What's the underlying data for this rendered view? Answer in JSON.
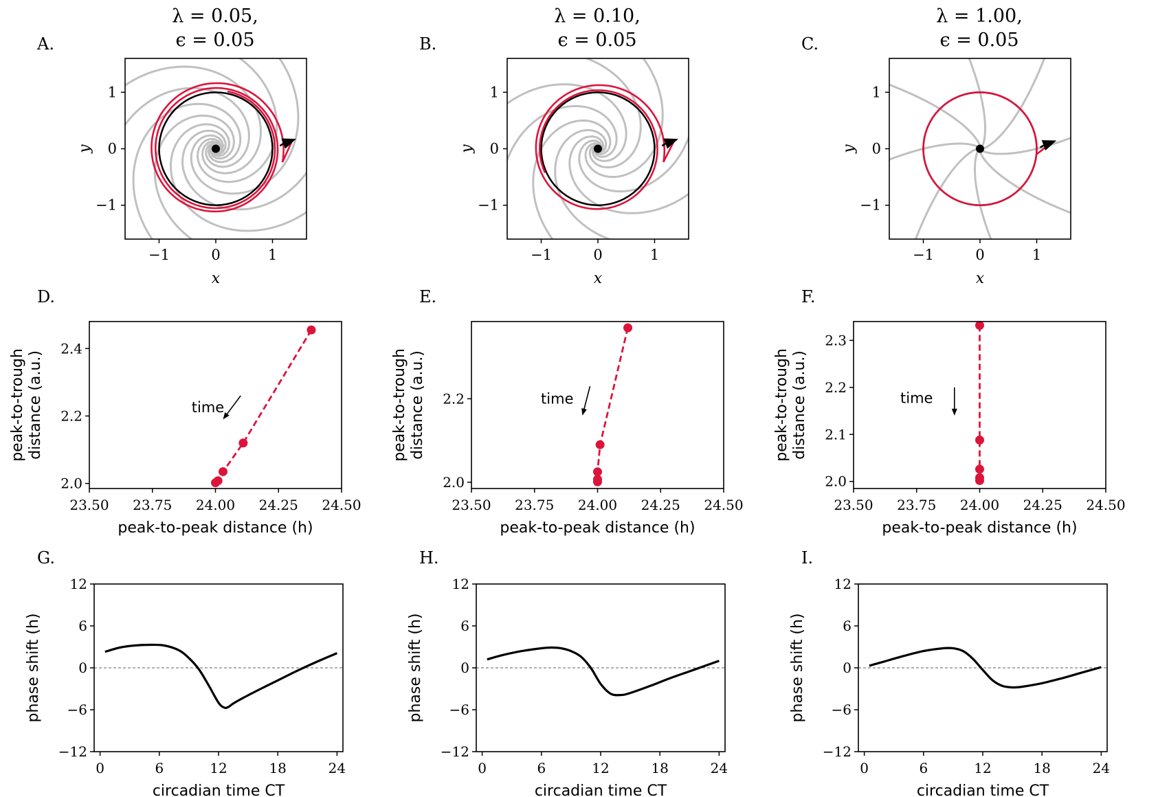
{
  "figure": {
    "columns": [
      {
        "title_line1": "λ = 0.05,",
        "title_line2": "ϵ = 0.05"
      },
      {
        "title_line1": "λ = 0.10,",
        "title_line2": "ϵ = 0.05"
      },
      {
        "title_line1": "λ = 1.00,",
        "title_line2": "ϵ = 0.05"
      }
    ],
    "panel_letters": [
      "A.",
      "B.",
      "C.",
      "D.",
      "E.",
      "F.",
      "G.",
      "H.",
      "I."
    ],
    "annotation_time": "time",
    "colors": {
      "trajectory": "#dc143c",
      "limit_cycle": "#000000",
      "isochrons": "#c0c0c0",
      "zero_line": "#808080"
    }
  },
  "chart_data": [
    {
      "panel": "A.",
      "type": "phase_portrait",
      "xlabel": "x",
      "ylabel": "y",
      "xlim": [
        -1.6,
        1.6
      ],
      "ylim": [
        -1.6,
        1.6
      ],
      "xticks": [
        "−1",
        "0",
        "1"
      ],
      "yticks": [
        "−1",
        "0",
        "1"
      ],
      "lambda": 0.05,
      "epsilon": 0.05,
      "limit_cycle_radius": 1.0,
      "fixed_point": [
        0,
        0
      ],
      "isochron_twist": 2.6,
      "isochron_count": 8,
      "trajectory_end": [
        1.35,
        0.15
      ],
      "spiral": {
        "r0": 1.2,
        "decay": 0.12,
        "phi0": -0.2,
        "turns": 2.25
      }
    },
    {
      "panel": "B.",
      "type": "phase_portrait",
      "xlabel": "x",
      "ylabel": "y",
      "xlim": [
        -1.6,
        1.6
      ],
      "ylim": [
        -1.6,
        1.6
      ],
      "xticks": [
        "−1",
        "0",
        "1"
      ],
      "yticks": [
        "−1",
        "0",
        "1"
      ],
      "lambda": 0.1,
      "epsilon": 0.05,
      "limit_cycle_radius": 1.0,
      "fixed_point": [
        0,
        0
      ],
      "isochron_twist": 1.9,
      "isochron_count": 8,
      "trajectory_end": [
        1.35,
        0.15
      ],
      "spiral": {
        "r0": 1.18,
        "decay": 0.2,
        "phi0": -0.2,
        "turns": 1.6
      }
    },
    {
      "panel": "C.",
      "type": "phase_portrait",
      "xlabel": "x",
      "ylabel": "y",
      "xlim": [
        -1.6,
        1.6
      ],
      "ylim": [
        -1.6,
        1.6
      ],
      "xticks": [
        "−1",
        "0",
        "1"
      ],
      "yticks": [
        "−1",
        "0",
        "1"
      ],
      "lambda": 1.0,
      "epsilon": 0.05,
      "limit_cycle_radius": 1.0,
      "fixed_point": [
        0,
        0
      ],
      "isochron_twist": 0.25,
      "isochron_count": 8,
      "trajectory_end": [
        1.28,
        0.12
      ],
      "spiral": {
        "r0": 1.0,
        "decay": 1.5,
        "phi0": -0.1,
        "turns": 1.05
      }
    },
    {
      "panel": "D.",
      "type": "scatter",
      "xlabel": "peak-to-peak distance (h)",
      "ylabel": [
        "peak-to-trough",
        "distance (a.u.)"
      ],
      "xlim": [
        23.5,
        24.5
      ],
      "ylim": [
        1.985,
        2.48
      ],
      "xticks": [
        23.5,
        23.75,
        24.0,
        24.25,
        24.5
      ],
      "yticks": [
        2.0,
        2.2,
        2.4
      ],
      "points": [
        [
          24.38,
          2.455
        ],
        [
          24.11,
          2.12
        ],
        [
          24.03,
          2.035
        ],
        [
          24.01,
          2.008
        ],
        [
          24.0,
          2.002
        ]
      ],
      "annotation": {
        "text": "time",
        "x": 23.97,
        "y": 2.225,
        "arrow_from": [
          24.1,
          2.26
        ],
        "arrow_to": [
          24.03,
          2.19
        ]
      }
    },
    {
      "panel": "E.",
      "type": "scatter",
      "xlabel": "peak-to-peak distance (h)",
      "ylabel": [
        "peak-to-trough",
        "distance (a.u.)"
      ],
      "xlim": [
        23.5,
        24.5
      ],
      "ylim": [
        1.985,
        2.385
      ],
      "xticks": [
        23.5,
        23.75,
        24.0,
        24.25,
        24.5
      ],
      "yticks": [
        2.0,
        2.2
      ],
      "points": [
        [
          24.12,
          2.37
        ],
        [
          24.01,
          2.09
        ],
        [
          24.0,
          2.025
        ],
        [
          24.0,
          2.007
        ],
        [
          24.0,
          2.001
        ]
      ],
      "annotation": {
        "text": "time",
        "x": 23.84,
        "y": 2.2,
        "arrow_from": [
          23.97,
          2.23
        ],
        "arrow_to": [
          23.94,
          2.16
        ]
      }
    },
    {
      "panel": "F.",
      "type": "scatter",
      "xlabel": "peak-to-peak distance (h)",
      "ylabel": [
        "peak-to-trough",
        "distance (a.u.)"
      ],
      "xlim": [
        23.5,
        24.5
      ],
      "ylim": [
        1.985,
        2.34
      ],
      "xticks": [
        23.5,
        23.75,
        24.0,
        24.25,
        24.5
      ],
      "yticks": [
        2.0,
        2.1,
        2.2,
        2.3
      ],
      "points": [
        [
          24.0,
          2.332
        ],
        [
          24.0,
          2.088
        ],
        [
          24.0,
          2.026
        ],
        [
          24.0,
          2.008
        ],
        [
          24.0,
          2.002
        ]
      ],
      "annotation": {
        "text": "time",
        "x": 23.75,
        "y": 2.177,
        "arrow_from": [
          23.9,
          2.2
        ],
        "arrow_to": [
          23.9,
          2.14
        ]
      }
    },
    {
      "panel": "G.",
      "type": "line",
      "xlabel": "circadian time CT",
      "ylabel": "phase shift (h)",
      "xlim": [
        -0.6,
        24.6
      ],
      "ylim": [
        -12,
        12
      ],
      "xticks": [
        0,
        6,
        12,
        18,
        24
      ],
      "yticks": [
        12,
        6,
        0,
        -6,
        -12
      ],
      "x": [
        0.5,
        2,
        3.5,
        5,
        6.5,
        8,
        9,
        10,
        11,
        12,
        12.6,
        13,
        13.5,
        14.5,
        16,
        18,
        20,
        22,
        24
      ],
      "y": [
        2.3,
        2.9,
        3.2,
        3.3,
        3.2,
        2.5,
        1.4,
        -0.2,
        -2.5,
        -5.0,
        -5.7,
        -5.6,
        -5.1,
        -4.3,
        -3.2,
        -1.8,
        -0.4,
        0.9,
        2.1
      ]
    },
    {
      "panel": "H.",
      "type": "line",
      "xlabel": "circadian time CT",
      "ylabel": "phase shift (h)",
      "xlim": [
        -0.6,
        24.6
      ],
      "ylim": [
        -12,
        12
      ],
      "xticks": [
        0,
        6,
        12,
        18,
        24
      ],
      "yticks": [
        12,
        6,
        0,
        -6,
        -12
      ],
      "x": [
        0.5,
        2,
        4,
        6,
        7,
        8,
        9,
        10,
        11,
        12,
        13,
        14,
        15,
        17,
        19,
        21,
        23,
        24
      ],
      "y": [
        1.2,
        1.8,
        2.4,
        2.8,
        2.9,
        2.8,
        2.4,
        1.6,
        0.0,
        -2.3,
        -3.7,
        -3.9,
        -3.6,
        -2.6,
        -1.5,
        -0.5,
        0.5,
        1.0
      ]
    },
    {
      "panel": "I.",
      "type": "line",
      "xlabel": "circadian time CT",
      "ylabel": "phase shift (h)",
      "xlim": [
        -0.6,
        24.6
      ],
      "ylim": [
        -12,
        12
      ],
      "xticks": [
        0,
        6,
        12,
        18,
        24
      ],
      "yticks": [
        12,
        6,
        0,
        -6,
        -12
      ],
      "x": [
        0.5,
        2,
        4,
        6,
        8,
        9,
        10,
        11,
        12,
        13,
        14,
        15,
        16,
        18,
        20,
        22,
        24
      ],
      "y": [
        0.3,
        0.9,
        1.7,
        2.4,
        2.8,
        2.8,
        2.4,
        1.3,
        -0.3,
        -1.8,
        -2.6,
        -2.8,
        -2.7,
        -2.2,
        -1.5,
        -0.7,
        0.1
      ]
    }
  ]
}
